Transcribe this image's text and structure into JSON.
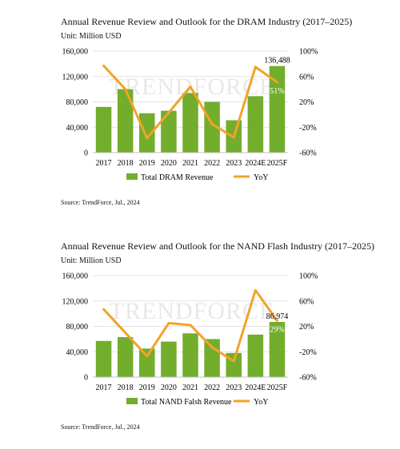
{
  "chart_data": [
    {
      "type": "bar",
      "title": "Annual Revenue Review and Outlook for the DRAM Industry (2017–2025)",
      "unit_label": "Unit: Million USD",
      "categories": [
        "2017",
        "2018",
        "2019",
        "2020",
        "2021",
        "2022",
        "2023",
        "2024E",
        "2025F"
      ],
      "series": [
        {
          "name": "Total DRAM Revenue",
          "kind": "bar",
          "axis": "left",
          "color": "#72ad2c",
          "values": [
            72000,
            100000,
            62000,
            66000,
            94000,
            80000,
            51000,
            89000,
            136488
          ]
        },
        {
          "name": "YoY",
          "kind": "line",
          "axis": "right",
          "color": "#f2a32a",
          "values": [
            77,
            40,
            -37,
            3,
            44,
            -15,
            -36,
            75,
            51
          ]
        }
      ],
      "ylim_left": [
        0,
        160000
      ],
      "yticks_left": [
        "0",
        "40,000",
        "80,000",
        "120,000",
        "160,000"
      ],
      "ylim_right": [
        -60,
        100
      ],
      "yticks_right": [
        "-60%",
        "-20%",
        "20%",
        "60%",
        "100%"
      ],
      "data_labels": {
        "bar_value": "136,488",
        "yoy_value": "51%"
      },
      "watermark": "TRENDFORCE",
      "source": "Source: TrendForce, Jul., 2024"
    },
    {
      "type": "bar",
      "title": "Annual Revenue Review and Outlook for the NAND Flash Industry (2017–2025)",
      "unit_label": "Unit: Million USD",
      "categories": [
        "2017",
        "2018",
        "2019",
        "2020",
        "2021",
        "2022",
        "2023",
        "2024E",
        "2025F"
      ],
      "series": [
        {
          "name": "Total NAND Falsh Revenue",
          "kind": "bar",
          "axis": "left",
          "color": "#72ad2c",
          "values": [
            57000,
            63000,
            45000,
            56000,
            69000,
            60000,
            38000,
            67000,
            86974
          ]
        },
        {
          "name": "YoY",
          "kind": "line",
          "axis": "right",
          "color": "#f2a32a",
          "values": [
            47,
            10,
            -27,
            25,
            22,
            -13,
            -35,
            77,
            29
          ]
        }
      ],
      "ylim_left": [
        0,
        160000
      ],
      "yticks_left": [
        "0",
        "40,000",
        "80,000",
        "120,000",
        "160,000"
      ],
      "ylim_right": [
        -60,
        100
      ],
      "yticks_right": [
        "-60%",
        "-20%",
        "20%",
        "60%",
        "100%"
      ],
      "data_labels": {
        "bar_value": "86,974",
        "yoy_value": "29%"
      },
      "watermark": "TRENDFORCE",
      "source": "Source: TrendForce, Jul., 2024"
    }
  ]
}
